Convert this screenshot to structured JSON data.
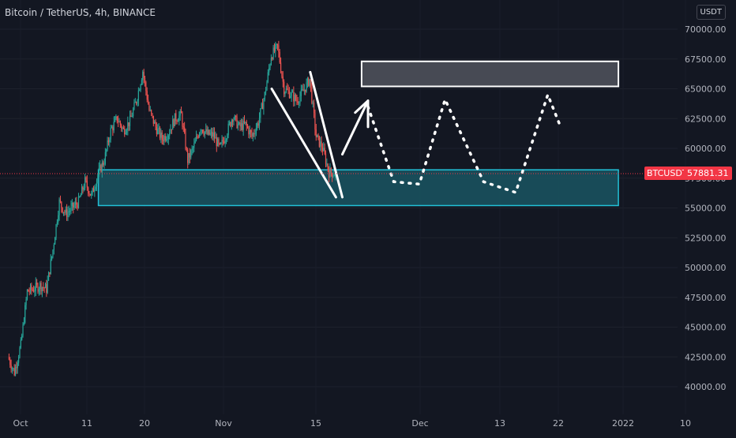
{
  "header": {
    "title": "Bitcoin / TetherUS, 4h, BINANCE",
    "currency": "USDT"
  },
  "last_price": {
    "symbol": "BTCUSDT",
    "value": "57881.31",
    "numeric": 57881.31
  },
  "colors": {
    "background": "#131722",
    "up": "#26a69a",
    "down": "#ef5350",
    "zone_border": "#22c1d8",
    "zone_fill": "#1a5561",
    "target_box": "#4a4d57",
    "drawing": "#ffffff",
    "price_line": "#f23645",
    "axis_text": "#b2b5be"
  },
  "chart_data": {
    "type": "candlestick",
    "x_ticks": [
      "Oct",
      "11",
      "20",
      "Nov",
      "15",
      "Dec",
      "13",
      "22",
      "2022",
      "10"
    ],
    "y_ticks": [
      40000,
      42500,
      45000,
      47500,
      50000,
      52500,
      55000,
      57500,
      60000,
      62500,
      65000,
      67500,
      70000
    ],
    "y_tick_labels": [
      "40000.00",
      "42500.00",
      "45000.00",
      "47500.00",
      "50000.00",
      "52500.00",
      "55000.00",
      "57500.00",
      "60000.00",
      "62500.00",
      "65000.00",
      "67500.00",
      "70000.00"
    ],
    "ylim": [
      38600,
      71300
    ],
    "price_path": [
      [
        "2021-09-29",
        42500
      ],
      [
        "2021-09-30",
        41200
      ],
      [
        "2021-10-01",
        43500
      ],
      [
        "2021-10-02",
        48000
      ],
      [
        "2021-10-03",
        48200
      ],
      [
        "2021-10-04",
        48500
      ],
      [
        "2021-10-05",
        48200
      ],
      [
        "2021-10-06",
        51500
      ],
      [
        "2021-10-07",
        55500
      ],
      [
        "2021-10-08",
        54500
      ],
      [
        "2021-10-09",
        55000
      ],
      [
        "2021-10-10",
        55500
      ],
      [
        "2021-10-11",
        57200
      ],
      [
        "2021-10-12",
        56000
      ],
      [
        "2021-10-13",
        57800
      ],
      [
        "2021-10-14",
        59000
      ],
      [
        "2021-10-15",
        61500
      ],
      [
        "2021-10-16",
        62500
      ],
      [
        "2021-10-17",
        61500
      ],
      [
        "2021-10-18",
        62300
      ],
      [
        "2021-10-19",
        64000
      ],
      [
        "2021-10-20",
        66500
      ],
      [
        "2021-10-21",
        63200
      ],
      [
        "2021-10-22",
        61800
      ],
      [
        "2021-10-23",
        60800
      ],
      [
        "2021-10-24",
        61300
      ],
      [
        "2021-10-25",
        62500
      ],
      [
        "2021-10-26",
        62800
      ],
      [
        "2021-10-27",
        59000
      ],
      [
        "2021-10-28",
        60200
      ],
      [
        "2021-10-29",
        61800
      ],
      [
        "2021-10-30",
        61200
      ],
      [
        "2021-10-31",
        61100
      ],
      [
        "2021-11-01",
        60000
      ],
      [
        "2021-11-02",
        61200
      ],
      [
        "2021-11-03",
        62700
      ],
      [
        "2021-11-04",
        61800
      ],
      [
        "2021-11-05",
        62000
      ],
      [
        "2021-11-06",
        61000
      ],
      [
        "2021-11-07",
        62200
      ],
      [
        "2021-11-08",
        64500
      ],
      [
        "2021-11-09",
        67800
      ],
      [
        "2021-11-10",
        68500
      ],
      [
        "2021-11-11",
        65000
      ],
      [
        "2021-11-12",
        64600
      ],
      [
        "2021-11-13",
        64000
      ],
      [
        "2021-11-14",
        64800
      ],
      [
        "2021-11-15",
        65800
      ],
      [
        "2021-11-16",
        61000
      ],
      [
        "2021-11-17",
        60000
      ],
      [
        "2021-11-18",
        58000
      ],
      [
        "2021-11-19",
        57881
      ]
    ],
    "support_zone": {
      "low": 55200,
      "high": 58200,
      "from": "2021-10-13",
      "to": "2022-01-02"
    },
    "target_zone": {
      "low": 65200,
      "high": 67300,
      "from": "2021-11-23",
      "to": "2022-01-02"
    },
    "wedge_lines": [
      [
        [
          "2021-11-09",
          65000
        ],
        [
          "2021-11-19",
          55900
        ]
      ],
      [
        [
          "2021-11-15",
          66400
        ],
        [
          "2021-11-20",
          55900
        ]
      ]
    ],
    "arrow": {
      "from": [
        "2021-11-20",
        59500
      ],
      "to": [
        "2021-11-24",
        64000
      ],
      "head_left": [
        "2021-11-22",
        63000
      ],
      "head_bottom": [
        "2021-11-24",
        61800
      ]
    },
    "projection_path": [
      [
        "2021-11-24",
        63500
      ],
      [
        "2021-11-28",
        57200
      ],
      [
        "2021-12-02",
        57000
      ],
      [
        "2021-12-06",
        64100
      ],
      [
        "2021-12-12",
        57200
      ],
      [
        "2021-12-17",
        56300
      ],
      [
        "2021-12-22",
        64500
      ],
      [
        "2021-12-24",
        61800
      ]
    ]
  }
}
